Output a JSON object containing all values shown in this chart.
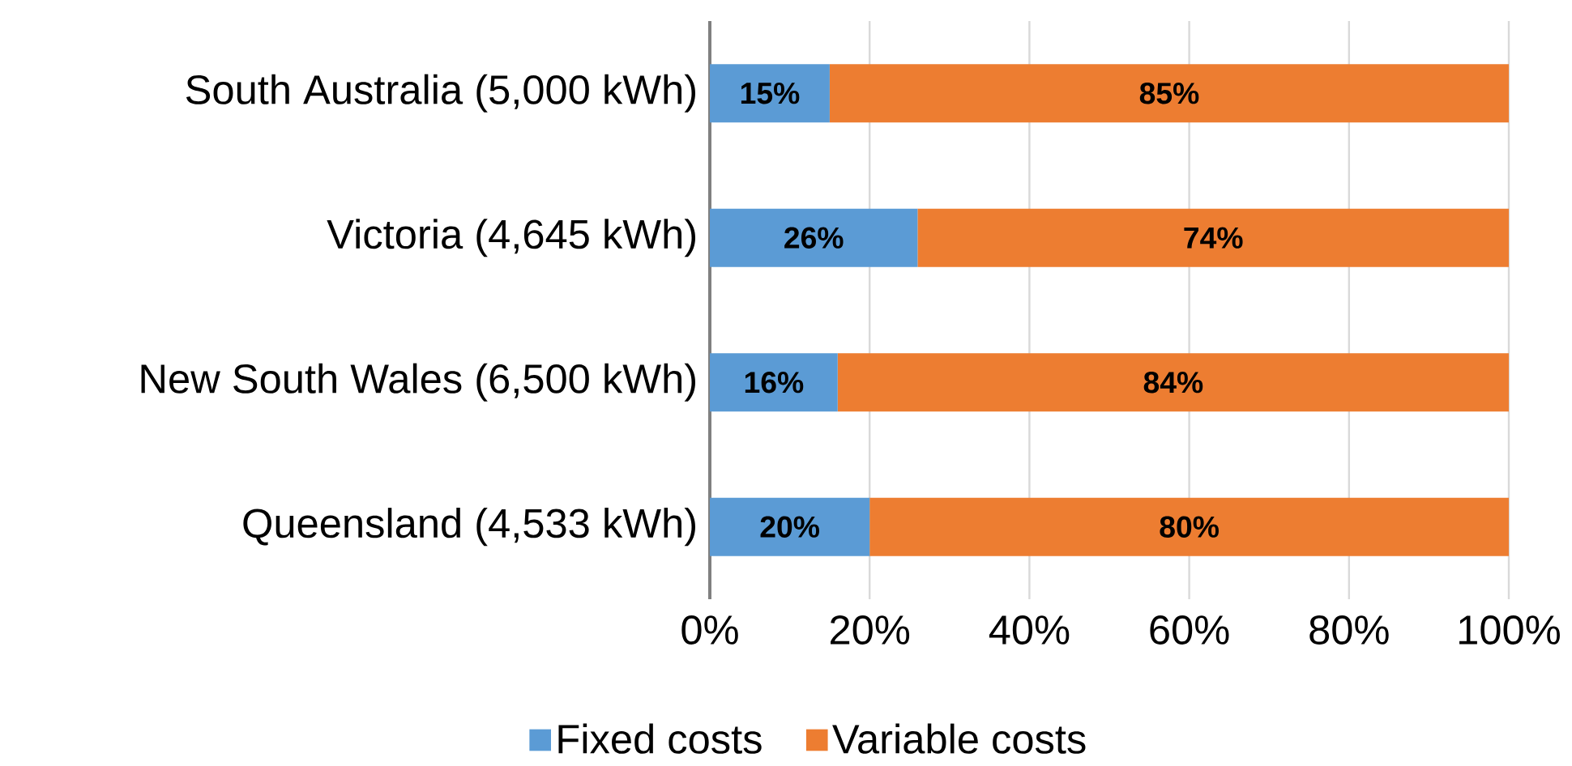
{
  "chart_data": {
    "type": "bar",
    "orientation": "horizontal",
    "stacked": true,
    "categories": [
      "South Australia (5,000 kWh)",
      "Victoria (4,645 kWh)",
      "New South Wales (6,500 kWh)",
      "Queensland (4,533 kWh)"
    ],
    "series": [
      {
        "name": "Fixed costs",
        "color": "#5b9bd5",
        "values": [
          15,
          26,
          16,
          20
        ],
        "value_labels": [
          "15%",
          "26%",
          "16%",
          "20%"
        ]
      },
      {
        "name": "Variable costs",
        "color": "#ed7d31",
        "values": [
          85,
          74,
          84,
          80
        ],
        "value_labels": [
          "85%",
          "74%",
          "84%",
          "80%"
        ]
      }
    ],
    "xlim": [
      0,
      100
    ],
    "xticks": [
      {
        "value": 0,
        "label": "0%"
      },
      {
        "value": 20,
        "label": "20%"
      },
      {
        "value": 40,
        "label": "40%"
      },
      {
        "value": 60,
        "label": "60%"
      },
      {
        "value": 80,
        "label": "80%"
      },
      {
        "value": 100,
        "label": "100%"
      }
    ],
    "grid": "x",
    "legend": "bottom"
  }
}
